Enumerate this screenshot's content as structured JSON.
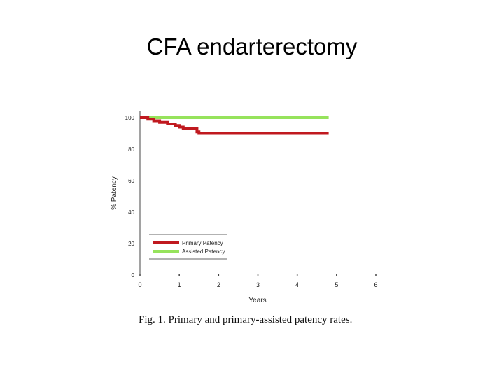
{
  "slide": {
    "title": "CFA endarterectomy"
  },
  "figure": {
    "caption": "Fig. 1.  Primary and primary-assisted patency rates."
  },
  "chart_data": {
    "type": "line",
    "xlabel": "Years",
    "ylabel": "% Patency",
    "xlim": [
      0,
      6
    ],
    "ylim": [
      0,
      100
    ],
    "xticks": [
      "0",
      "1",
      "2",
      "3",
      "4",
      "5",
      "6"
    ],
    "yticks": [
      "0",
      "20",
      "40",
      "60",
      "80",
      "100"
    ],
    "grid": false,
    "legend_position": "bottom-left",
    "series": [
      {
        "name": "Primary Patency",
        "color": "#c0191f",
        "step": true,
        "x": [
          0,
          0.2,
          0.35,
          0.5,
          0.7,
          0.9,
          1.0,
          1.1,
          1.4,
          1.45,
          1.5,
          4.8
        ],
        "y": [
          100,
          99,
          98,
          97,
          96,
          95,
          94,
          93,
          93,
          91,
          90,
          90
        ]
      },
      {
        "name": "Assisted Patency",
        "color": "#96e35c",
        "step": true,
        "x": [
          0,
          4.8
        ],
        "y": [
          100,
          100
        ]
      }
    ]
  }
}
